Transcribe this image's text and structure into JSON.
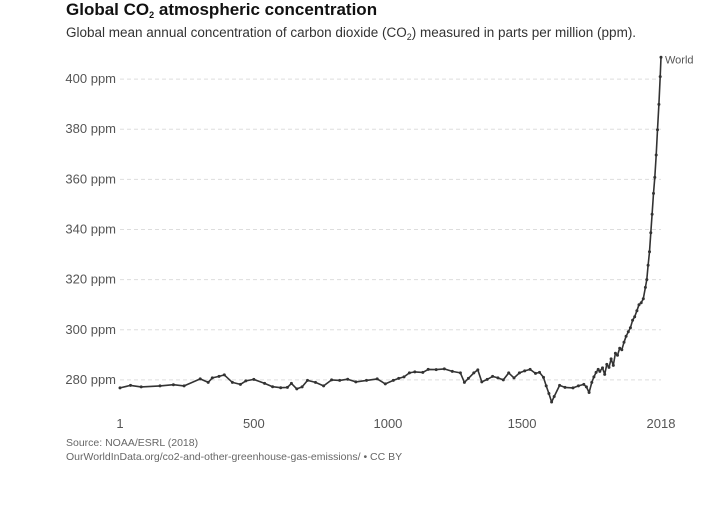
{
  "header": {
    "title_pre": "Global CO",
    "title_sub": "2",
    "title_post": " atmospheric concentration",
    "subtitle_pre": "Global mean annual concentration of carbon dioxide (CO",
    "subtitle_sub": "2",
    "subtitle_post": ") measured in parts per million (ppm)."
  },
  "footer": {
    "source": "Source: NOAA/ESRL (2018)",
    "url": "OurWorldInData.org/co2-and-other-greenhouse-gas-emissions/ • CC BY"
  },
  "chart_data": {
    "type": "line",
    "title": "Global CO2 atmospheric concentration",
    "xlabel": "",
    "ylabel": "",
    "xlim": [
      1,
      2018
    ],
    "ylim": [
      268,
      412
    ],
    "x_ticks": [
      {
        "value": 1,
        "label": "1"
      },
      {
        "value": 500,
        "label": "500"
      },
      {
        "value": 1000,
        "label": "1000"
      },
      {
        "value": 1500,
        "label": "1500"
      },
      {
        "value": 2018,
        "label": "2018"
      }
    ],
    "y_ticks": [
      {
        "value": 280,
        "label": "280 ppm"
      },
      {
        "value": 300,
        "label": "300 ppm"
      },
      {
        "value": 320,
        "label": "320 ppm"
      },
      {
        "value": 340,
        "label": "340 ppm"
      },
      {
        "value": 360,
        "label": "360 ppm"
      },
      {
        "value": 380,
        "label": "380 ppm"
      },
      {
        "value": 400,
        "label": "400 ppm"
      }
    ],
    "grid": true,
    "line_color": "#333333",
    "grid_color": "#dddddd",
    "series": [
      {
        "name": "World",
        "points": [
          [
            1,
            276.8
          ],
          [
            40,
            277.8
          ],
          [
            80,
            277.2
          ],
          [
            150,
            277.6
          ],
          [
            200,
            278.1
          ],
          [
            240,
            277.6
          ],
          [
            300,
            280.4
          ],
          [
            330,
            279.0
          ],
          [
            345,
            280.8
          ],
          [
            370,
            281.4
          ],
          [
            390,
            282.0
          ],
          [
            420,
            279.0
          ],
          [
            450,
            278.2
          ],
          [
            470,
            279.6
          ],
          [
            500,
            280.2
          ],
          [
            540,
            278.6
          ],
          [
            570,
            277.3
          ],
          [
            600,
            276.9
          ],
          [
            625,
            277.0
          ],
          [
            640,
            278.6
          ],
          [
            660,
            276.4
          ],
          [
            680,
            277.2
          ],
          [
            700,
            279.8
          ],
          [
            730,
            279.0
          ],
          [
            760,
            277.6
          ],
          [
            790,
            280.0
          ],
          [
            820,
            279.8
          ],
          [
            850,
            280.3
          ],
          [
            880,
            279.2
          ],
          [
            920,
            279.8
          ],
          [
            960,
            280.4
          ],
          [
            990,
            278.4
          ],
          [
            1020,
            279.8
          ],
          [
            1040,
            280.6
          ],
          [
            1060,
            281.2
          ],
          [
            1080,
            282.8
          ],
          [
            1100,
            283.2
          ],
          [
            1130,
            283.0
          ],
          [
            1150,
            284.2
          ],
          [
            1180,
            284.1
          ],
          [
            1210,
            284.4
          ],
          [
            1240,
            283.4
          ],
          [
            1270,
            282.8
          ],
          [
            1285,
            279.0
          ],
          [
            1300,
            280.6
          ],
          [
            1320,
            282.8
          ],
          [
            1335,
            284.0
          ],
          [
            1350,
            279.2
          ],
          [
            1370,
            280.2
          ],
          [
            1390,
            281.4
          ],
          [
            1410,
            280.8
          ],
          [
            1430,
            280.0
          ],
          [
            1450,
            282.8
          ],
          [
            1470,
            280.8
          ],
          [
            1490,
            282.8
          ],
          [
            1510,
            283.6
          ],
          [
            1530,
            284.2
          ],
          [
            1550,
            282.6
          ],
          [
            1565,
            283.0
          ],
          [
            1580,
            281.0
          ],
          [
            1590,
            277.6
          ],
          [
            1600,
            274.6
          ],
          [
            1610,
            271.2
          ],
          [
            1620,
            273.4
          ],
          [
            1640,
            277.8
          ],
          [
            1660,
            277.0
          ],
          [
            1690,
            276.8
          ],
          [
            1710,
            277.6
          ],
          [
            1730,
            278.2
          ],
          [
            1740,
            277.2
          ],
          [
            1750,
            275.0
          ],
          [
            1760,
            279.0
          ],
          [
            1768,
            281.2
          ],
          [
            1776,
            283.0
          ],
          [
            1784,
            284.2
          ],
          [
            1790,
            283.4
          ],
          [
            1800,
            284.8
          ],
          [
            1808,
            282.2
          ],
          [
            1816,
            286.2
          ],
          [
            1824,
            285.0
          ],
          [
            1832,
            288.4
          ],
          [
            1840,
            285.8
          ],
          [
            1848,
            290.6
          ],
          [
            1856,
            289.8
          ],
          [
            1864,
            292.6
          ],
          [
            1872,
            292.0
          ],
          [
            1880,
            295.0
          ],
          [
            1888,
            297.4
          ],
          [
            1896,
            299.2
          ],
          [
            1904,
            300.8
          ],
          [
            1912,
            303.8
          ],
          [
            1920,
            305.2
          ],
          [
            1928,
            307.6
          ],
          [
            1936,
            310.0
          ],
          [
            1944,
            310.8
          ],
          [
            1952,
            312.4
          ],
          [
            1960,
            316.9
          ],
          [
            1965,
            320.0
          ],
          [
            1970,
            325.7
          ],
          [
            1975,
            331.1
          ],
          [
            1980,
            338.7
          ],
          [
            1985,
            346.1
          ],
          [
            1990,
            354.4
          ],
          [
            1995,
            360.8
          ],
          [
            2000,
            369.7
          ],
          [
            2005,
            379.8
          ],
          [
            2010,
            389.9
          ],
          [
            2015,
            401.0
          ],
          [
            2018,
            408.7
          ]
        ]
      }
    ]
  }
}
